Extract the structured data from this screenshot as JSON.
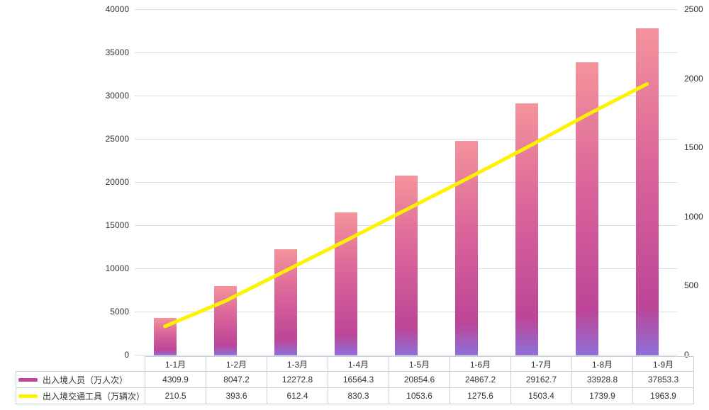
{
  "chart_data": {
    "type": "bar",
    "subtype": "bar-line-combo",
    "title": "",
    "categories": [
      "1-1月",
      "1-2月",
      "1-3月",
      "1-4月",
      "1-5月",
      "1-6月",
      "1-7月",
      "1-8月",
      "1-9月"
    ],
    "series": [
      {
        "name": "出入境人员（万人次）",
        "type": "bar",
        "axis": "left",
        "values": [
          4309.9,
          8047.2,
          12272.8,
          16564.3,
          20854.6,
          24867.2,
          29162.7,
          33928.8,
          37853.3
        ]
      },
      {
        "name": "出入境交通工具（万辆次）",
        "type": "line",
        "axis": "right",
        "values": [
          210.5,
          393.6,
          612.4,
          830.3,
          1053.6,
          1275.6,
          1503.4,
          1739.9,
          1963.9
        ]
      }
    ],
    "left_axis": {
      "min": 0,
      "max": 40000,
      "step": 5000,
      "tick_labels": [
        "0",
        "5000",
        "10000",
        "15000",
        "20000",
        "25000",
        "30000",
        "35000",
        "40000"
      ]
    },
    "right_axis": {
      "min": 0,
      "max": 2500,
      "step": 500,
      "tick_labels": [
        "0",
        "500",
        "1000",
        "1500",
        "2000",
        "2500"
      ]
    },
    "grid": true,
    "legend_position": "bottom-table-left"
  },
  "colors": {
    "background": "#ffffff",
    "grid_line": "#d5dde9",
    "table_border": "#c6d0df",
    "axis_text": "#333333",
    "bar_gradient_top": "#f4939b",
    "bar_gradient_mid": "#c9529a",
    "bar_gradient_bottom": "#8e70d8",
    "line": "#fff200",
    "legend_bar_swatch": "#c2459c",
    "legend_line_swatch": "#fff200"
  }
}
